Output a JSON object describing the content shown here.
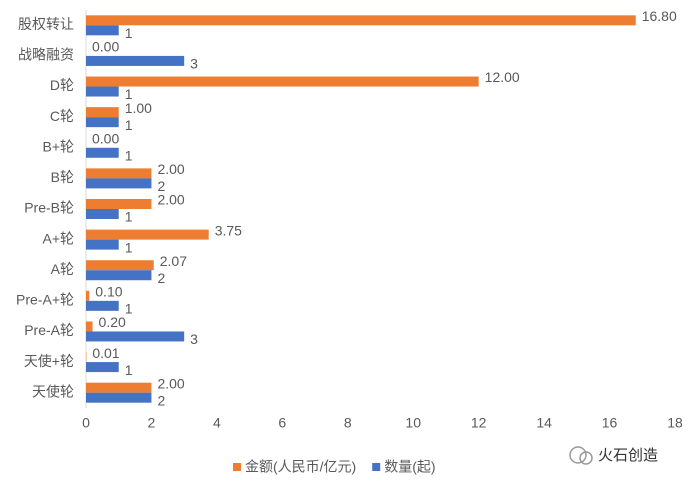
{
  "chart_data": {
    "type": "barh",
    "categories": [
      "股权转让",
      "战略融资",
      "D轮",
      "C轮",
      "B+轮",
      "B轮",
      "Pre-B轮",
      "A+轮",
      "A轮",
      "Pre-A+轮",
      "Pre-A轮",
      "天使+轮",
      "天使轮"
    ],
    "series": [
      {
        "name": "金额(人民币/亿元)",
        "color": "#ED7D31",
        "values": [
          16.8,
          0,
          12,
          1,
          0,
          2,
          2,
          3.75,
          2.07,
          0.1,
          0.2,
          0.01,
          2
        ],
        "value_labels": [
          "16.80",
          "0.00",
          "12.00",
          "1.00",
          "0.00",
          "2.00",
          "2.00",
          "3.75",
          "2.07",
          "0.10",
          "0.20",
          "0.01",
          "2.00"
        ]
      },
      {
        "name": "数量(起)",
        "color": "#4472C4",
        "values": [
          1,
          3,
          1,
          1,
          1,
          2,
          1,
          1,
          2,
          1,
          3,
          1,
          2
        ]
      }
    ],
    "xlim": [
      0,
      18
    ],
    "xticks": [
      0,
      2,
      4,
      6,
      8,
      10,
      12,
      14,
      16,
      18
    ],
    "legend": "bottom",
    "brand": "火石创造"
  }
}
